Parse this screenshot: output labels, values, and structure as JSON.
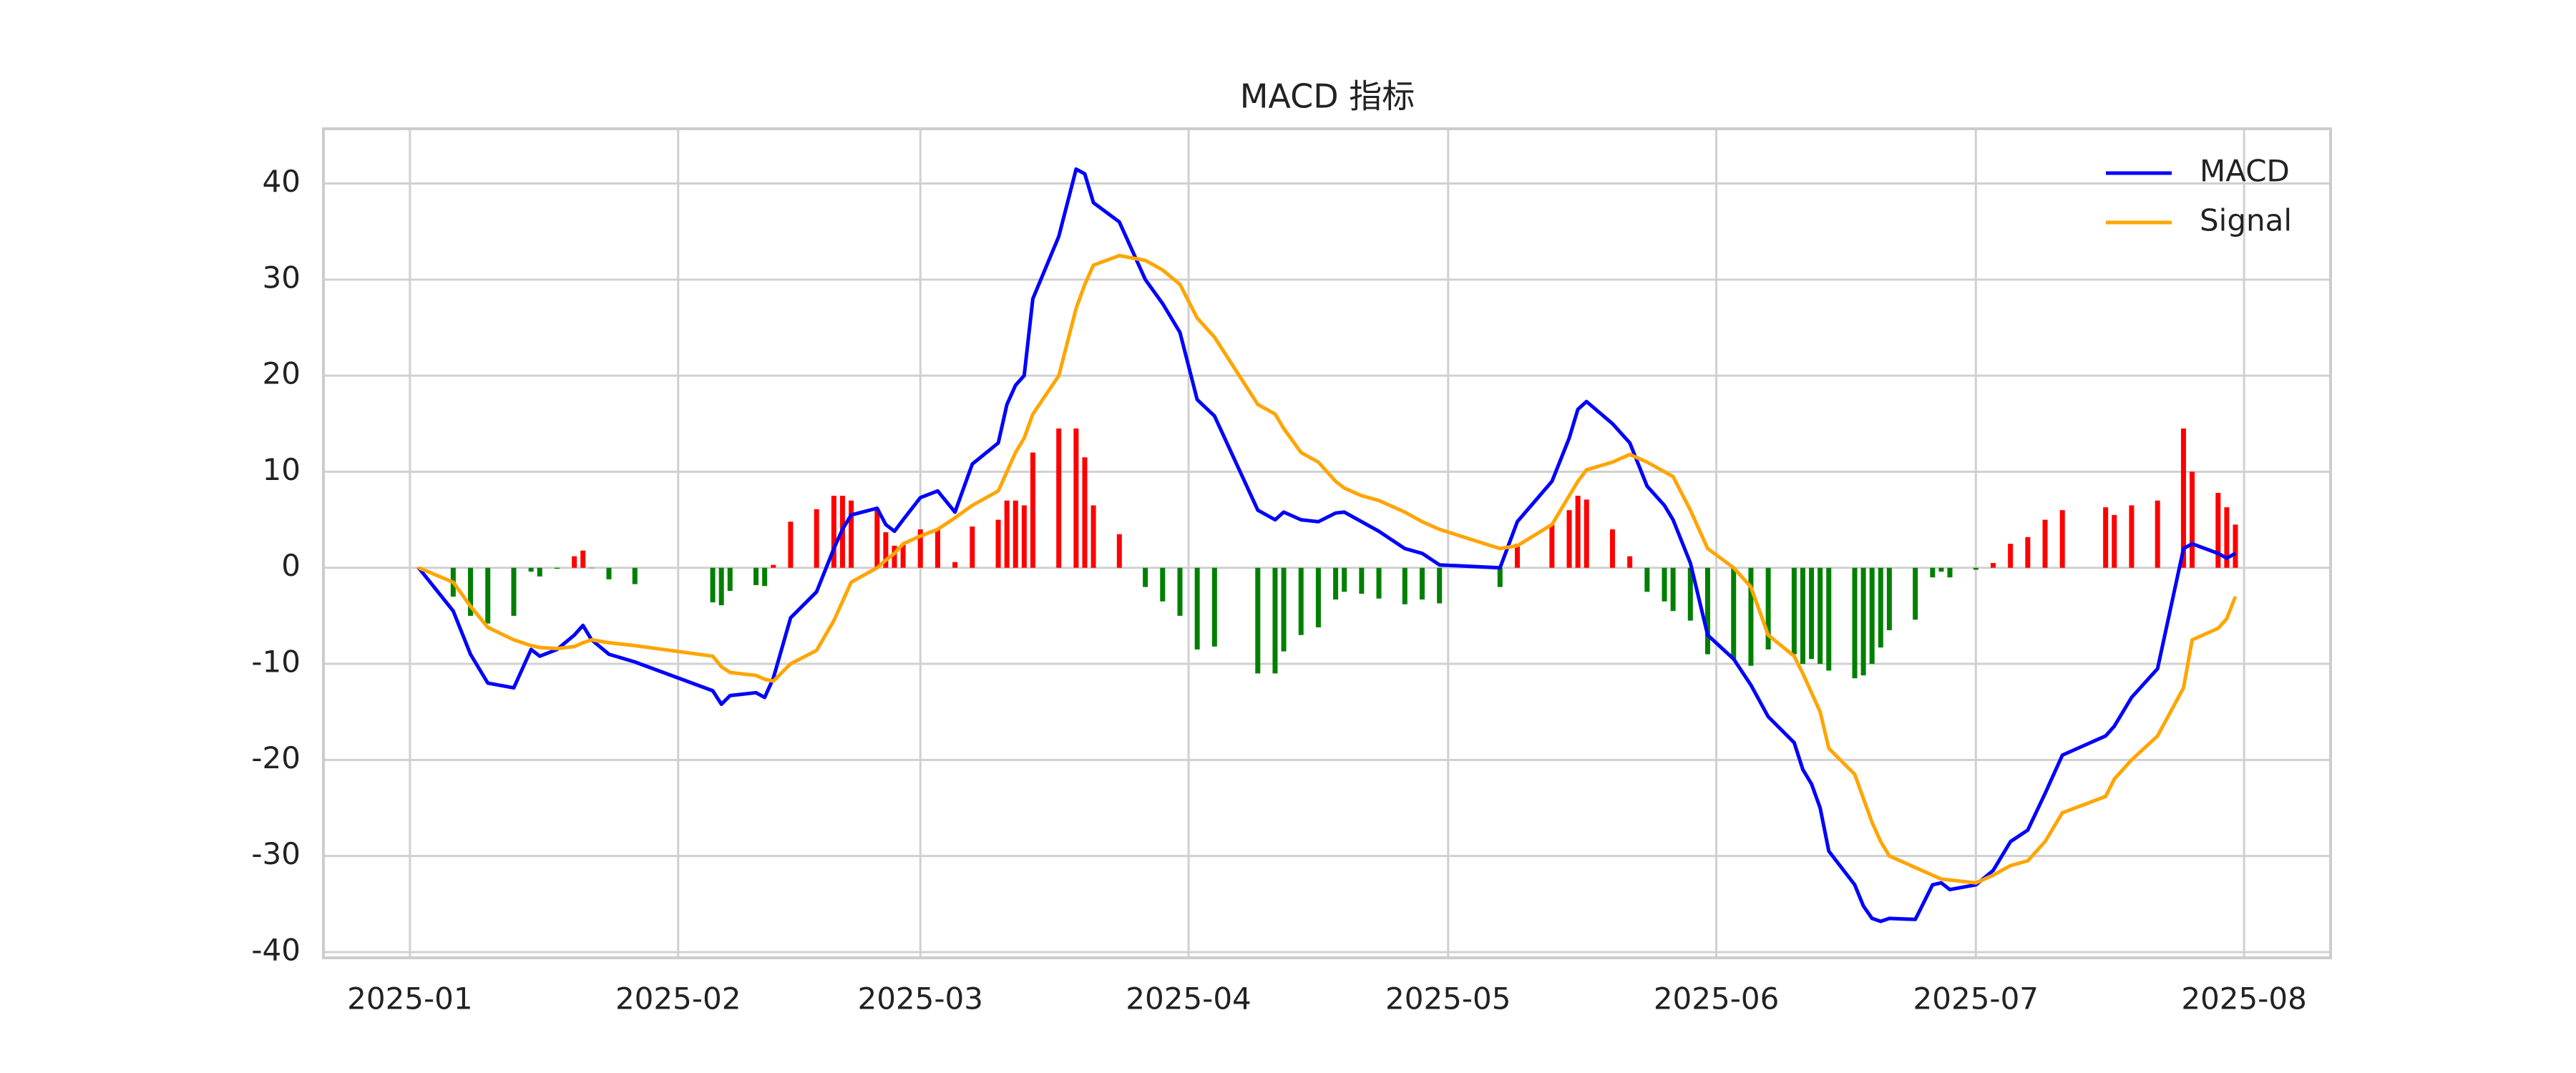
{
  "chart_data": {
    "type": "line",
    "title": "MACD 指标",
    "x": [
      1,
      5,
      7,
      9,
      12,
      14,
      15,
      17,
      19,
      20,
      21,
      23,
      26,
      35,
      36,
      37,
      40,
      41,
      42,
      44,
      47,
      49,
      50,
      51,
      54,
      55,
      56,
      57,
      59,
      61,
      63,
      65,
      68,
      69,
      70,
      71,
      72,
      75,
      77,
      78,
      79,
      82,
      85,
      87,
      89,
      91,
      93,
      98,
      100,
      101,
      103,
      105,
      107,
      108,
      110,
      112,
      115,
      117,
      119,
      126,
      128,
      132,
      134,
      135,
      136,
      139,
      141,
      143,
      145,
      146,
      148,
      150,
      153,
      155,
      157,
      160,
      161,
      162,
      163,
      164,
      167,
      168,
      169,
      170,
      171,
      174,
      176,
      177,
      178,
      181,
      183,
      185,
      187,
      189,
      191,
      196,
      197,
      199,
      202,
      205,
      206,
      209,
      210,
      211
    ],
    "series": [
      {
        "name": "MACD",
        "color": "#0000ff",
        "values": [
          0,
          -4.5,
          -9,
          -12,
          -12.5,
          -8.5,
          -9.2,
          -8.5,
          -7,
          -6,
          -7.5,
          -9,
          -9.8,
          -12.8,
          -14.2,
          -13.3,
          -13,
          -13.5,
          -11.5,
          -5.2,
          -2.5,
          2,
          4,
          5.5,
          6.2,
          4.5,
          3.8,
          5,
          7.3,
          8,
          5.8,
          10.8,
          13,
          17,
          19,
          20,
          28,
          34.5,
          41.5,
          41,
          38,
          36,
          30,
          27.5,
          24.5,
          17.5,
          15.8,
          6,
          5,
          5.8,
          5,
          4.8,
          5.7,
          5.8,
          4.8,
          3.8,
          2,
          1.5,
          0.3,
          0,
          4.8,
          9,
          13.5,
          16.5,
          17.3,
          15,
          13,
          8.5,
          6.5,
          5,
          0.5,
          -7,
          -9.5,
          -12.2,
          -15.5,
          -18.2,
          -21,
          -22.5,
          -25,
          -29.5,
          -33,
          -35.2,
          -36.5,
          -36.8,
          -36.5,
          -36.6,
          -33,
          -32.8,
          -33.5,
          -33,
          -31.5,
          -28.5,
          -27.3,
          -23.5,
          -19.5,
          -17.5,
          -16.5,
          -13.5,
          -10.5,
          2,
          2.5,
          1.5,
          1.0,
          1.5
        ]
      },
      {
        "name": "Signal",
        "color": "#ffa500",
        "values": [
          0,
          -1.5,
          -4,
          -6.2,
          -7.5,
          -8.1,
          -8.3,
          -8.4,
          -8.2,
          -7.8,
          -7.5,
          -7.8,
          -8.1,
          -9.2,
          -10.3,
          -10.9,
          -11.2,
          -11.6,
          -11.8,
          -10,
          -8.6,
          -5.5,
          -3.5,
          -1.5,
          0,
          0.8,
          1.5,
          2.5,
          3.3,
          4,
          5.2,
          6.5,
          8,
          10,
          12,
          13.5,
          16,
          20,
          27,
          29.5,
          31.5,
          32.5,
          32,
          31,
          29.5,
          26,
          24,
          17,
          16,
          14.5,
          12,
          11,
          9,
          8.3,
          7.5,
          7,
          5.8,
          4.8,
          4,
          2,
          2.3,
          4.5,
          7.5,
          9,
          10.2,
          11,
          11.8,
          11,
          10,
          9.5,
          6,
          2,
          0,
          -2,
          -7,
          -9.2,
          -11,
          -13,
          -15,
          -18.8,
          -21.5,
          -24,
          -26.5,
          -28.5,
          -30,
          -31.2,
          -32,
          -32.4,
          -32.5,
          -32.8,
          -32,
          -31,
          -30.5,
          -28.5,
          -25.5,
          -23.8,
          -22,
          -20,
          -17.5,
          -12.5,
          -7.5,
          -6.3,
          -5.3,
          -3
        ]
      }
    ],
    "histogram": {
      "positive_color": "#ff0000",
      "negative_color": "#008000",
      "values": [
        0,
        -3,
        -5,
        -5.8,
        -5,
        -0.4,
        -0.9,
        -0.1,
        1.2,
        1.8,
        0,
        -1.2,
        -1.7,
        -3.6,
        -3.9,
        -2.4,
        -1.8,
        -1.9,
        0.3,
        4.8,
        6.1,
        7.5,
        7.5,
        7,
        6.2,
        3.7,
        2.3,
        2.5,
        4,
        4,
        0.6,
        4.3,
        5,
        7,
        7,
        6.5,
        12,
        14.5,
        14.5,
        11.5,
        6.5,
        3.5,
        -2,
        -3.5,
        -5,
        -8.5,
        -8.2,
        -11,
        -11,
        -8.7,
        -7,
        -6.2,
        -3.3,
        -2.5,
        -2.7,
        -3.2,
        -3.8,
        -3.3,
        -3.7,
        -2,
        2.5,
        4.5,
        6,
        7.5,
        7.1,
        4,
        1.2,
        -2.5,
        -3.5,
        -4.5,
        -5.5,
        -9,
        -9.5,
        -10.2,
        -8.5,
        -9,
        -10,
        -9.5,
        -10,
        -10.7,
        -11.5,
        -11.2,
        -10,
        -8.3,
        -6.5,
        -5.4,
        -1,
        -0.4,
        -1,
        -0.2,
        0.5,
        2.5,
        3.2,
        5,
        6,
        6.3,
        5.5,
        6.5,
        7,
        14.5,
        10,
        7.8,
        6.3,
        4.5
      ]
    },
    "xlim": [
      -10,
      222
    ],
    "xticks": [
      {
        "value": 0,
        "label": "2025-01"
      },
      {
        "value": 31,
        "label": "2025-02"
      },
      {
        "value": 59,
        "label": "2025-03"
      },
      {
        "value": 90,
        "label": "2025-04"
      },
      {
        "value": 120,
        "label": "2025-05"
      },
      {
        "value": 151,
        "label": "2025-06"
      },
      {
        "value": 181,
        "label": "2025-07"
      },
      {
        "value": 212,
        "label": "2025-08"
      }
    ],
    "ylim": [
      -40.6,
      45.7
    ],
    "yticks": [
      -40,
      -30,
      -20,
      -10,
      0,
      10,
      20,
      30,
      40
    ],
    "grid": true,
    "legend": "upper right"
  }
}
